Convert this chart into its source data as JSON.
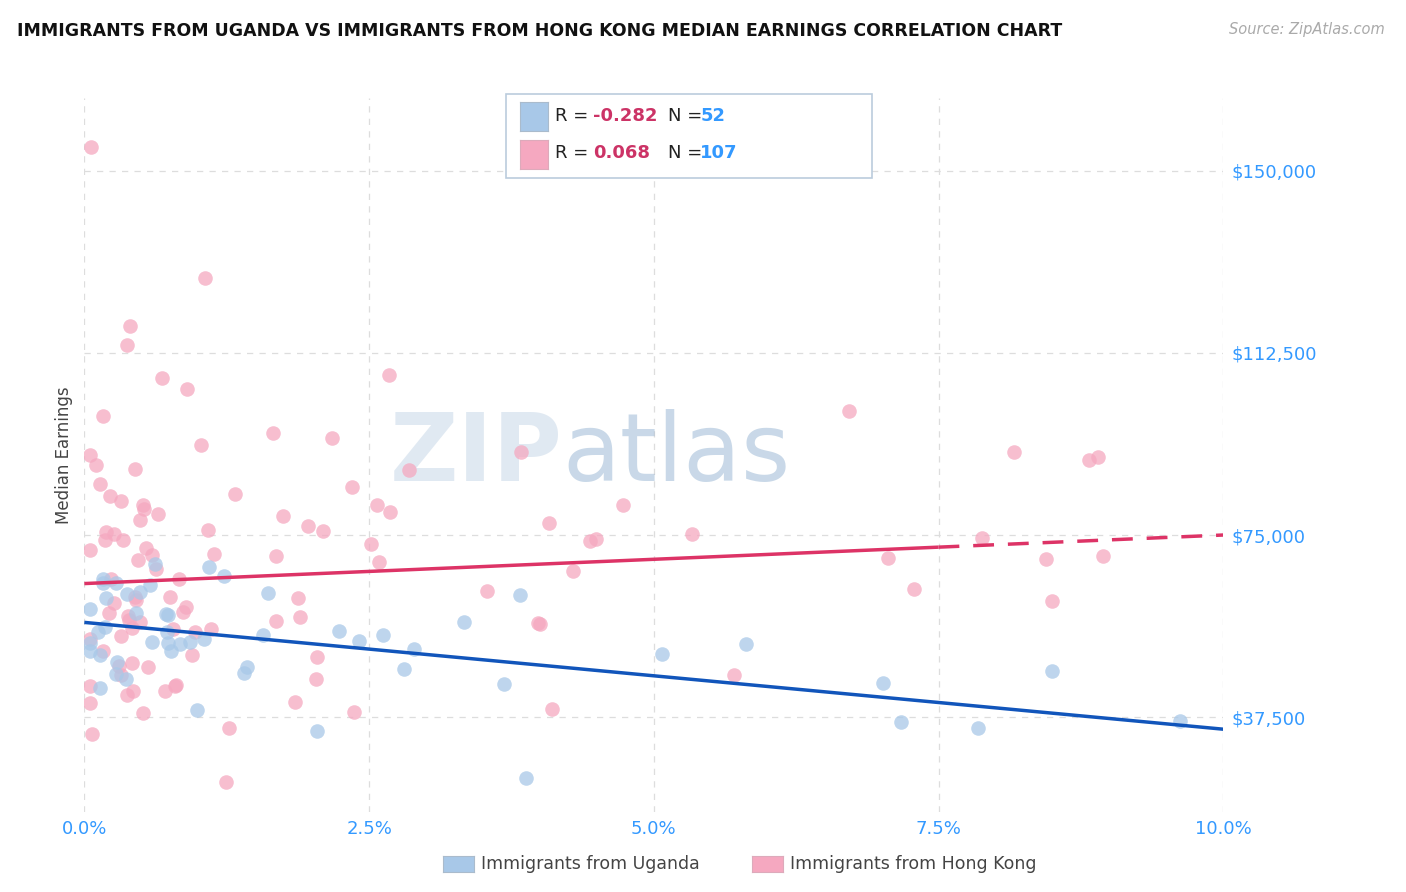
{
  "title": "IMMIGRANTS FROM UGANDA VS IMMIGRANTS FROM HONG KONG MEDIAN EARNINGS CORRELATION CHART",
  "source": "Source: ZipAtlas.com",
  "ylabel": "Median Earnings",
  "xlim": [
    0.0,
    10.0
  ],
  "ylim": [
    18000,
    165000
  ],
  "yticks": [
    37500,
    75000,
    112500,
    150000
  ],
  "ytick_labels": [
    "$37,500",
    "$75,000",
    "$112,500",
    "$150,000"
  ],
  "xtick_labels": [
    "0.0%",
    "2.5%",
    "5.0%",
    "7.5%",
    "10.0%"
  ],
  "xticks": [
    0.0,
    2.5,
    5.0,
    7.5,
    10.0
  ],
  "uganda_color": "#a8c8e8",
  "hongkong_color": "#f5a8c0",
  "uganda_R": -0.282,
  "uganda_N": 52,
  "hongkong_R": 0.068,
  "hongkong_N": 107,
  "uganda_label": "Immigrants from Uganda",
  "hongkong_label": "Immigrants from Hong Kong",
  "trend_uganda_color": "#1155bb",
  "trend_hongkong_color": "#dd3366",
  "watermark_zip": "ZIP",
  "watermark_atlas": "atlas",
  "background_color": "#ffffff",
  "grid_color": "#dddddd",
  "title_color": "#111111",
  "tick_color": "#3399ff",
  "legend_R_color": "#cc3366",
  "legend_N_color": "#3399ff"
}
